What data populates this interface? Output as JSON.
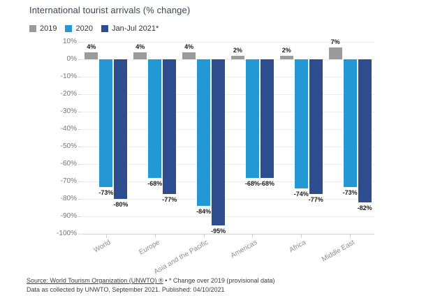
{
  "header": {
    "title": "International tourist arrivals (% change)"
  },
  "chart_data": {
    "type": "bar",
    "title": "International tourist arrivals (% change)",
    "categories": [
      "World",
      "Europe",
      "Asia and the Pacific",
      "Americas",
      "Africa",
      "Middle East"
    ],
    "series": [
      {
        "name": "2019",
        "color": "#9b9b9b",
        "values": [
          4,
          4,
          4,
          2,
          2,
          7
        ]
      },
      {
        "name": "2020",
        "color": "#2498d5",
        "values": [
          -73,
          -68,
          -84,
          -68,
          -74,
          -73
        ]
      },
      {
        "name": "Jan-Jul 2021*",
        "color": "#2d4d8e",
        "values": [
          -80,
          -77,
          -95,
          -68,
          -77,
          -82
        ]
      }
    ],
    "value_labels": [
      [
        "4%",
        "4%",
        "4%",
        "2%",
        "2%",
        "7%"
      ],
      [
        "-73%",
        "-68%",
        "-84%",
        "-68%",
        "-74%",
        "-73%"
      ],
      [
        "-80%",
        "-77%",
        "-95%",
        "-68%",
        "-77%",
        "-82%"
      ]
    ],
    "ylim": [
      -100,
      10
    ],
    "ytick_values": [
      10,
      0,
      -10,
      -20,
      -30,
      -40,
      -50,
      -60,
      -70,
      -80,
      -90,
      -100
    ],
    "ytick_labels": [
      "10%",
      "0%",
      "-10%",
      "-20%",
      "-30%",
      "-40%",
      "-50%",
      "-60%",
      "-70%",
      "-80%",
      "-90%",
      "-100%"
    ],
    "grid": true,
    "legend_position": "top-left",
    "xlabel": "",
    "ylabel": ""
  },
  "footer": {
    "source_link": "Source: World Tourism Organization (UNWTO) ®",
    "bullet": "•",
    "note": "* Change over 2019 (provisional data)",
    "line2": "Data as collected by UNWTO, September 2021. Published: 04/10/2021"
  },
  "colors": {
    "background": "#ffffff",
    "grid": "#ececec",
    "axis": "#d2d2d2",
    "ytick_label": "#757575",
    "category_label": "#8c8c8c",
    "value_label": "#1a1a1a",
    "title": "#3a4651"
  }
}
